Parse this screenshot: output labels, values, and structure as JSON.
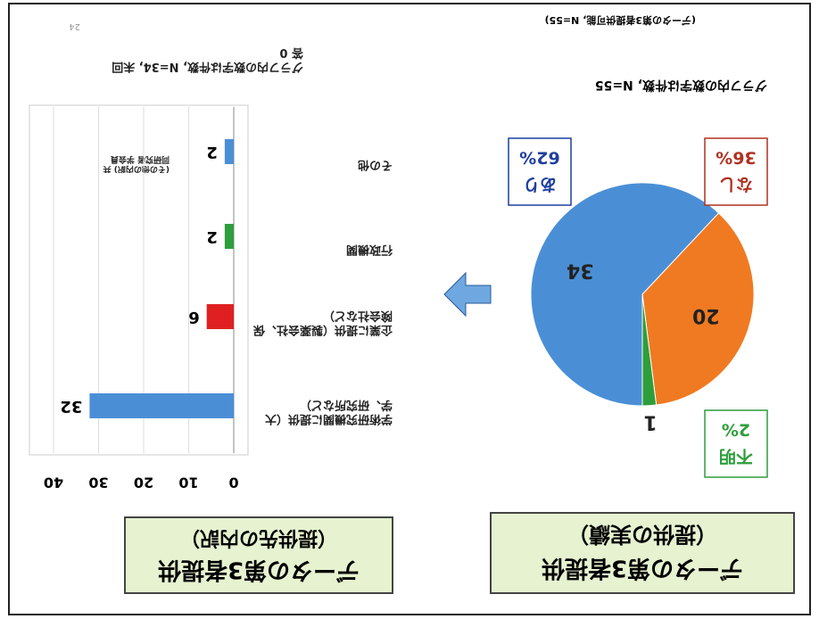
{
  "chart_data": [
    {
      "type": "pie",
      "title": "データの第3者提供",
      "subtitle": "（提供の実績）",
      "categories": [
        "あり",
        "なし",
        "不明"
      ],
      "values": [
        62,
        36,
        2
      ],
      "value_labels": [
        "62%",
        "36%",
        "2%"
      ],
      "counts": [
        34,
        20,
        1
      ],
      "colors": [
        "#4a8fd6",
        "#f07a22",
        "#2e9e3a"
      ],
      "label_colors": [
        "#1f3fa0",
        "#b03020",
        "#2e9e3a"
      ],
      "note": "グラフ内の数字は件数, N=55",
      "footnote": "(データの第3者提供可能, N=55)"
    },
    {
      "type": "barh",
      "title": "データの第3者提供",
      "subtitle": "（提供先の内訳）",
      "categories": [
        "学術研究機関に提供（大学、研究所など）",
        "企業に提供（製薬会社、保険会社など）",
        "行政機関",
        "その他"
      ],
      "values": [
        32,
        6,
        2,
        2
      ],
      "colors": [
        "#4a8fd6",
        "#e02020",
        "#2e9e3a",
        "#4a8fd6"
      ],
      "xlim": [
        0,
        40
      ],
      "xticks": [
        0,
        10,
        20,
        30,
        40
      ],
      "grid": true,
      "other_note": "(その他の内訳) 共同研究者 学会員",
      "note": "グラフ内の数字は件数, N=34, 未回答 0",
      "page": "24"
    }
  ]
}
